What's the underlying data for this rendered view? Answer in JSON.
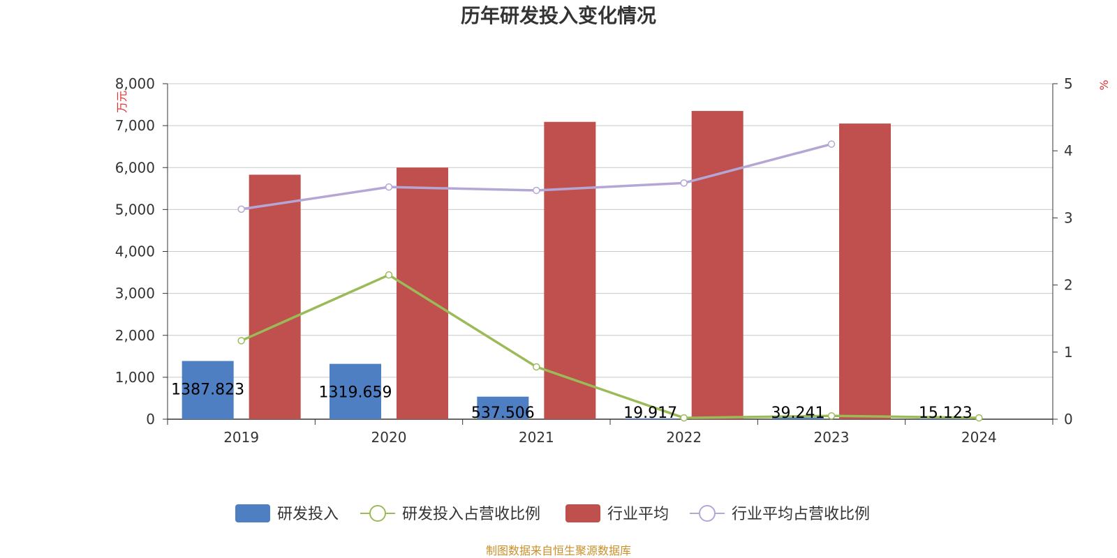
{
  "chart_data": {
    "type": "bar",
    "title": "历年研发投入变化情况",
    "categories": [
      "2019",
      "2020",
      "2021",
      "2022",
      "2023",
      "2024"
    ],
    "y_left": {
      "unit": "万元",
      "ylim": [
        0,
        8000
      ],
      "ticks": [
        "0",
        "1,000",
        "2,000",
        "3,000",
        "4,000",
        "5,000",
        "6,000",
        "7,000",
        "8,000"
      ]
    },
    "y_right": {
      "unit": "%",
      "ylim": [
        0,
        5
      ],
      "ticks": [
        "0",
        "1",
        "2",
        "3",
        "4",
        "5"
      ]
    },
    "grid": true,
    "legend_position": "bottom",
    "series": [
      {
        "name": "研发投入",
        "kind": "bar",
        "axis": "left",
        "color": "#4e7fc2",
        "values": [
          1387.823,
          1319.659,
          537.506,
          19.917,
          39.241,
          15.123
        ],
        "labels": [
          "1387.823",
          "1319.659",
          "537.506",
          "19.917",
          "39.241",
          "15.123"
        ]
      },
      {
        "name": "研发投入占营收比例",
        "kind": "line",
        "axis": "right",
        "color": "#9bbb59",
        "values": [
          1.17,
          2.15,
          0.78,
          0.02,
          0.05,
          0.02
        ]
      },
      {
        "name": "行业平均",
        "kind": "bar",
        "axis": "left",
        "color": "#c0504d",
        "values": [
          5830,
          6000,
          7090,
          7350,
          7050,
          null
        ]
      },
      {
        "name": "行业平均占营收比例",
        "kind": "line",
        "axis": "right",
        "color": "#b4a7d6",
        "values": [
          3.13,
          3.46,
          3.41,
          3.52,
          4.1,
          null
        ]
      }
    ],
    "source": "制图数据来自恒生聚源数据库"
  }
}
